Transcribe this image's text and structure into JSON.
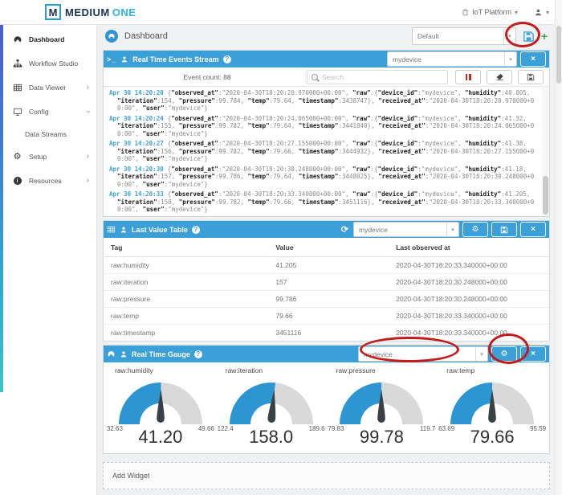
{
  "brand": {
    "logo_letter": "M",
    "name_primary": "MEDIUM",
    "name_secondary": "ONE"
  },
  "topnav": {
    "platform": "IoT Platform"
  },
  "sidebar": {
    "items": [
      {
        "label": "Dashboard"
      },
      {
        "label": "Workflow Studio"
      },
      {
        "label": "Data Viewer"
      },
      {
        "label": "Config"
      },
      {
        "label": "Data Streams"
      },
      {
        "label": "Setup"
      },
      {
        "label": "Resources"
      }
    ]
  },
  "page": {
    "title": "Dashboard",
    "dashboard_select": "Default"
  },
  "events": {
    "title": "Real Time Events Stream",
    "device": "mydevice",
    "event_count": "Event count: 88",
    "search_placeholder": "Search",
    "entries": [
      {
        "time": "Apr 30 14:20:20",
        "json": "{\"observed_at\":\"2020-04-30T18:20:20.970000+00:00\", \"raw\":{\"device_id\":\"mydevice\", \"humidity\":40.805, \"iteration\":154, \"pressure\":99.784, \"temp\":79.64, \"timestamp\":3438747}, \"received_at\":\"2020-04-30T18:20:20.970000+00:00\", \"user\":\"mydevice\"}"
      },
      {
        "time": "Apr 30 14:20:24",
        "json": "{\"observed_at\":\"2020-04-30T18:20:24.065000+00:00\", \"raw\":{\"device_id\":\"mydevice\", \"humidity\":41.32, \"iteration\":155, \"pressure\":99.782, \"temp\":79.64, \"timestamp\":3441840}, \"received_at\":\"2020-04-30T18:20:24.065000+00:00\", \"user\":\"mydevice\"}"
      },
      {
        "time": "Apr 30 14:20:27",
        "json": "{\"observed_at\":\"2020-04-30T18:20:27.155000+00:00\", \"raw\":{\"device_id\":\"mydevice\", \"humidity\":41.38, \"iteration\":156, \"pressure\":99.782, \"temp\":79.66, \"timestamp\":3444932}, \"received_at\":\"2020-04-30T18:20:27.155000+00:00\", \"user\":\"mydevice\"}"
      },
      {
        "time": "Apr 30 14:20:30",
        "json": "{\"observed_at\":\"2020-04-30T18:20:30.248000+00:00\", \"raw\":{\"device_id\":\"mydevice\", \"humidity\":41.18, \"iteration\":157, \"pressure\":99.786, \"temp\":79.64, \"timestamp\":3448025}, \"received_at\":\"2020-04-30T18:20:30.248000+00:00\", \"user\":\"mydevice\"}"
      },
      {
        "time": "Apr 30 14:20:33",
        "json": "{\"observed_at\":\"2020-04-30T18:20:33.340000+00:00\", \"raw\":{\"device_id\":\"mydevice\", \"humidity\":41.205, \"iteration\":158, \"pressure\":99.782, \"temp\":79.66, \"timestamp\":3451116}, \"received_at\":\"2020-04-30T18:20:33.340000+00:00\", \"user\":\"mydevice\"}"
      }
    ]
  },
  "last_value_table": {
    "title": "Last Value Table",
    "device": "mydevice",
    "columns": [
      "Tag",
      "Value",
      "Last observed at"
    ],
    "rows": [
      [
        "raw:humidity",
        "41.205",
        "2020-04-30T18:20:33.340000+00:00"
      ],
      [
        "raw:iteration",
        "157",
        "2020-04-30T18:20:30.248000+00:00"
      ],
      [
        "raw:pressure",
        "99.786",
        "2020-04-30T18:20:30.248000+00:00"
      ],
      [
        "raw:temp",
        "79.66",
        "2020-04-30T18:20:33.340000+00:00"
      ],
      [
        "raw:timestamp",
        "3451116",
        "2020-04-30T18:20:33.340000+00:00"
      ]
    ]
  },
  "gauges_widget": {
    "title": "Real Time Gauge",
    "device": "mydevice",
    "gauges": [
      {
        "label": "raw:humidity",
        "min": 32.63,
        "max": 49.66,
        "value": 41.2,
        "min_label": "32.63",
        "max_label": "49.66",
        "value_label": "41.20"
      },
      {
        "label": "raw:iteration",
        "min": 122.4,
        "max": 189.6,
        "value": 158.0,
        "min_label": "122.4",
        "max_label": "189.6",
        "value_label": "158.0"
      },
      {
        "label": "raw:pressure",
        "min": 79.83,
        "max": 119.7,
        "value": 99.78,
        "min_label": "79.83",
        "max_label": "119.7",
        "value_label": "99.78"
      },
      {
        "label": "raw:temp",
        "min": 63.69,
        "max": 95.59,
        "value": 79.66,
        "min_label": "63.69",
        "max_label": "95.59",
        "value_label": "79.66"
      }
    ]
  },
  "add_widget": {
    "label": "Add Widget"
  },
  "icons": {
    "terminal": ">_",
    "help": "?",
    "gear": "⚙",
    "refresh": "⟳",
    "close": "×",
    "caret": "▾",
    "chevron": "›",
    "plus": "+"
  },
  "colors": {
    "widget_header_blue": "#3b9fd8",
    "brand_cyan": "#2cb5ea",
    "gauge_blue": "#2e95d3",
    "gauge_gray": "#d9d9d9",
    "annotation_red": "#c41b1b",
    "timestamp_blue": "#3aa0d8",
    "sidebar_gradient_top": "#4d5ec6",
    "sidebar_gradient_bottom": "#3ec3c3"
  }
}
